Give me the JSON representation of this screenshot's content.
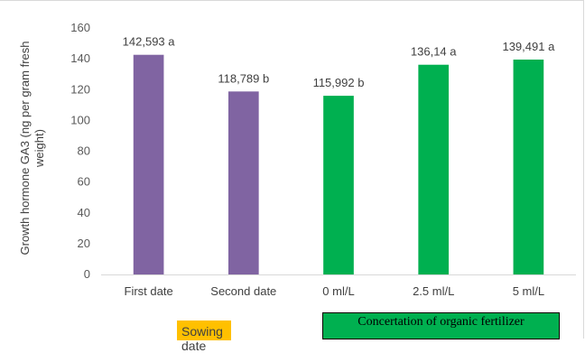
{
  "chart_data": {
    "type": "bar",
    "title": "",
    "xlabel": "",
    "ylabel": "Growth hormone GA3 (ng per gram fresh weight)",
    "ylim": [
      0,
      160
    ],
    "yticks": [
      0,
      20,
      40,
      60,
      80,
      100,
      120,
      140,
      160
    ],
    "grid": false,
    "categories": [
      "First date",
      "Second date",
      "0 ml/L",
      "2.5  ml/L",
      "5  ml/L"
    ],
    "values": [
      142.593,
      118.789,
      115.992,
      136.14,
      139.491
    ],
    "data_labels": [
      "142,593 a",
      "118,789 b",
      "115,992 b",
      "136,14 a",
      "139,491 a"
    ],
    "bar_colors": [
      "#8064a2",
      "#8064a2",
      "#00b050",
      "#00b050",
      "#00b050"
    ],
    "groups": [
      {
        "label": "Sowing date",
        "color": "#ffc000"
      },
      {
        "label": "Concertation of organic fertilizer",
        "color": "#00b050"
      }
    ]
  }
}
